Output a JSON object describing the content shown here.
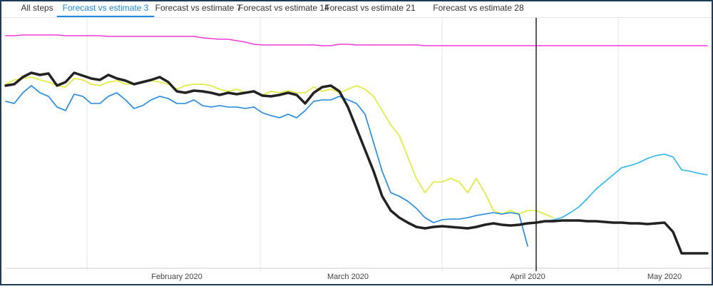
{
  "tabs": [
    "All steps",
    "Forecast vs estimate 3",
    "Forecast vs estimate 7",
    "Forecast vs estimate 14",
    "Forecast vs estimate 21",
    "Forecast vs estimate 28"
  ],
  "active_tab": 1,
  "chart_data": {
    "type": "line",
    "categories": [
      null,
      null,
      null,
      null,
      null,
      null,
      null,
      null,
      null,
      null,
      null,
      null,
      null,
      null,
      null,
      null,
      null,
      null,
      null,
      null,
      "February 2020",
      null,
      null,
      null,
      null,
      null,
      null,
      null,
      null,
      null,
      null,
      null,
      null,
      null,
      null,
      null,
      null,
      null,
      null,
      null,
      "March 2020",
      null,
      null,
      null,
      null,
      null,
      null,
      null,
      null,
      null,
      null,
      null,
      null,
      null,
      null,
      null,
      null,
      null,
      null,
      null,
      null,
      "April 2020",
      null,
      null,
      null,
      null,
      null,
      null,
      null,
      null,
      null,
      null,
      null,
      null,
      null,
      null,
      null,
      "May 2020",
      null,
      null,
      null,
      null,
      null
    ],
    "ylim": [
      0,
      340
    ],
    "series": [
      {
        "color": "#f03ad8",
        "values": [
          325,
          325,
          326,
          326,
          326,
          326,
          326,
          325,
          325,
          325,
          325,
          325,
          324,
          324,
          324,
          324,
          324,
          324,
          324,
          324,
          324,
          324,
          324,
          322,
          321,
          320,
          320,
          318,
          316,
          313,
          312,
          312,
          312,
          312,
          312,
          312,
          312,
          311,
          311,
          313,
          313,
          312,
          312,
          312,
          312,
          312,
          312,
          312,
          312,
          311,
          311,
          311,
          311,
          311,
          311,
          311,
          311,
          311,
          311,
          311,
          311,
          311,
          311,
          311,
          311,
          311,
          311,
          311,
          311,
          311,
          311,
          311,
          311,
          311,
          311,
          311,
          311,
          311,
          311,
          311,
          311,
          311,
          311
        ]
      },
      {
        "color": "#e2e830",
        "values": [
          257,
          263,
          265,
          267,
          263,
          260,
          255,
          253,
          265,
          263,
          257,
          255,
          260,
          262,
          257,
          257,
          260,
          262,
          260,
          257,
          250,
          255,
          257,
          257,
          255,
          250,
          247,
          250,
          245,
          247,
          242,
          247,
          245,
          248,
          245,
          245,
          253,
          247,
          250,
          245,
          250,
          255,
          250,
          240,
          220,
          200,
          185,
          155,
          125,
          105,
          120,
          120,
          125,
          120,
          105,
          125,
          105,
          80,
          75,
          80,
          75,
          80,
          80,
          75,
          70,
          null,
          null,
          null,
          null,
          null,
          null,
          null,
          null,
          null,
          null,
          null,
          null,
          null,
          null,
          null,
          null,
          null,
          null
        ]
      },
      {
        "color": "#1e88e5",
        "values": [
          233,
          230,
          245,
          255,
          245,
          240,
          225,
          220,
          243,
          240,
          230,
          230,
          240,
          245,
          235,
          223,
          227,
          235,
          240,
          237,
          230,
          230,
          235,
          227,
          225,
          227,
          225,
          225,
          223,
          225,
          217,
          213,
          210,
          215,
          210,
          220,
          233,
          235,
          235,
          240,
          235,
          230,
          215,
          175,
          135,
          105,
          100,
          93,
          83,
          70,
          63,
          67,
          68,
          68,
          70,
          73,
          75,
          77,
          75,
          77,
          75,
          30,
          null,
          null,
          null,
          null,
          null,
          null,
          null,
          null,
          null,
          null,
          null,
          null,
          null,
          null,
          null,
          null,
          null,
          null,
          null,
          null,
          null
        ]
      },
      {
        "color": "#29b6f6",
        "values": [
          null,
          null,
          null,
          null,
          null,
          null,
          null,
          null,
          null,
          null,
          null,
          null,
          null,
          null,
          null,
          null,
          null,
          null,
          null,
          null,
          null,
          null,
          null,
          null,
          null,
          null,
          null,
          null,
          null,
          null,
          null,
          null,
          null,
          null,
          null,
          null,
          null,
          null,
          null,
          null,
          null,
          null,
          null,
          null,
          null,
          null,
          null,
          null,
          null,
          null,
          null,
          null,
          null,
          null,
          null,
          null,
          null,
          null,
          null,
          null,
          null,
          null,
          63,
          65,
          67,
          70,
          77,
          85,
          97,
          110,
          120,
          130,
          140,
          143,
          147,
          153,
          157,
          159,
          155,
          137,
          135,
          132,
          130
        ]
      },
      {
        "color": "#222222",
        "values": [
          255,
          257,
          267,
          273,
          270,
          272,
          255,
          260,
          273,
          269,
          265,
          263,
          270,
          265,
          262,
          257,
          260,
          263,
          267,
          260,
          247,
          245,
          248,
          247,
          245,
          242,
          245,
          243,
          245,
          247,
          241,
          240,
          242,
          245,
          242,
          230,
          245,
          253,
          255,
          247,
          225,
          195,
          165,
          135,
          100,
          80,
          70,
          63,
          57,
          55,
          57,
          58,
          57,
          56,
          55,
          57,
          60,
          62,
          60,
          59,
          60,
          62,
          63,
          65,
          65,
          66,
          66,
          66,
          65,
          65,
          64,
          63,
          63,
          62,
          62,
          61,
          62,
          63,
          50,
          20,
          20,
          20,
          20
        ]
      }
    ]
  }
}
